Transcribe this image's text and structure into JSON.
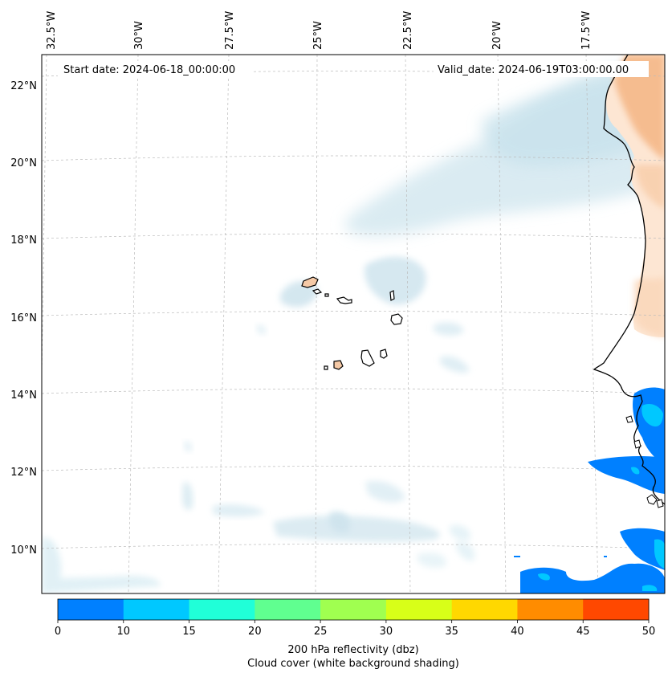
{
  "map": {
    "start_date_label": "Start date: 2024-06-18_00:00:00",
    "valid_date_label": "Valid_date: 2024-06-19T03:00:00.00",
    "lon_ticks": [
      "32.5°W",
      "30°W",
      "27.5°W",
      "25°W",
      "22.5°W",
      "20°W",
      "17.5°W"
    ],
    "lat_ticks": [
      "22°N",
      "20°N",
      "18°N",
      "16°N",
      "14°N",
      "12°N",
      "10°N"
    ],
    "extent": {
      "lon_min": -33,
      "lon_max": -15.6,
      "lat_min": 9,
      "lat_max": 22.8
    },
    "gridlines": true,
    "colors": {
      "gridline": "#bbbbbb",
      "coastline": "#000000",
      "land": "#f5c9a6",
      "cloud": "#cfe6ee"
    }
  },
  "colorbar": {
    "label_line1": "200 hPa reflectivity (dbz)",
    "label_line2": "Cloud cover (white background shading)",
    "ticks": [
      "0",
      "10",
      "15",
      "20",
      "25",
      "30",
      "35",
      "40",
      "45",
      "50"
    ],
    "colors": [
      "#0080ff",
      "#00c8ff",
      "#20ffd8",
      "#60ff90",
      "#a0ff50",
      "#d8ff18",
      "#ffd800",
      "#ff8c00",
      "#ff4800"
    ]
  }
}
